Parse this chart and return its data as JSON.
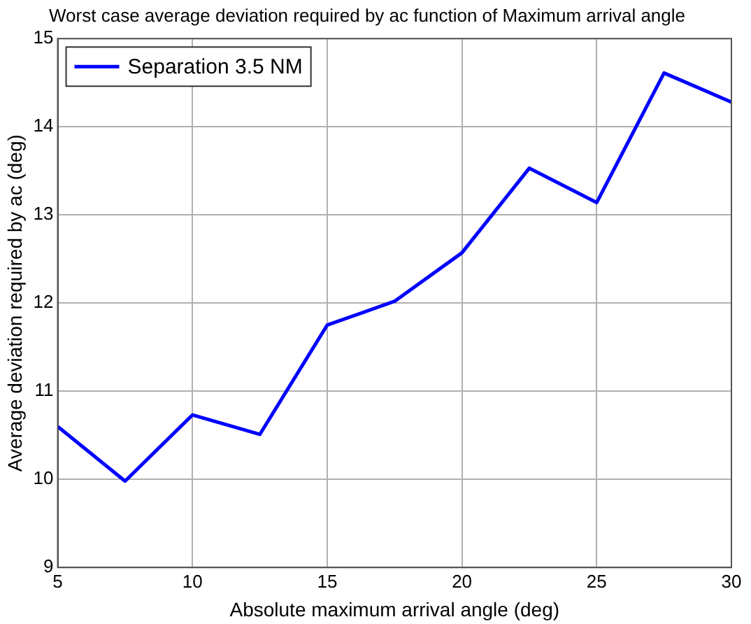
{
  "chart_data": {
    "type": "line",
    "title": "Worst case average deviation required by ac function of Maximum arrival angle",
    "xlabel": "Absolute maximum arrival angle (deg)",
    "ylabel": "Average deviation required by ac (deg)",
    "x": [
      5,
      7.5,
      10,
      12.5,
      15,
      17.5,
      20,
      22.5,
      25,
      27.5,
      30
    ],
    "series": [
      {
        "name": "Separation 3.5 NM",
        "color": "#0000ff",
        "values": [
          10.6,
          9.98,
          10.73,
          10.51,
          11.75,
          12.02,
          12.57,
          13.53,
          13.14,
          14.61,
          14.28
        ]
      }
    ],
    "xlim": [
      5,
      30
    ],
    "xticks": [
      5,
      10,
      15,
      20,
      25,
      30
    ],
    "ylim": [
      9,
      15
    ],
    "yticks": [
      9,
      10,
      11,
      12,
      13,
      14,
      15
    ],
    "grid": true,
    "legend": "top left",
    "marker": "none",
    "line_style": "solid"
  }
}
